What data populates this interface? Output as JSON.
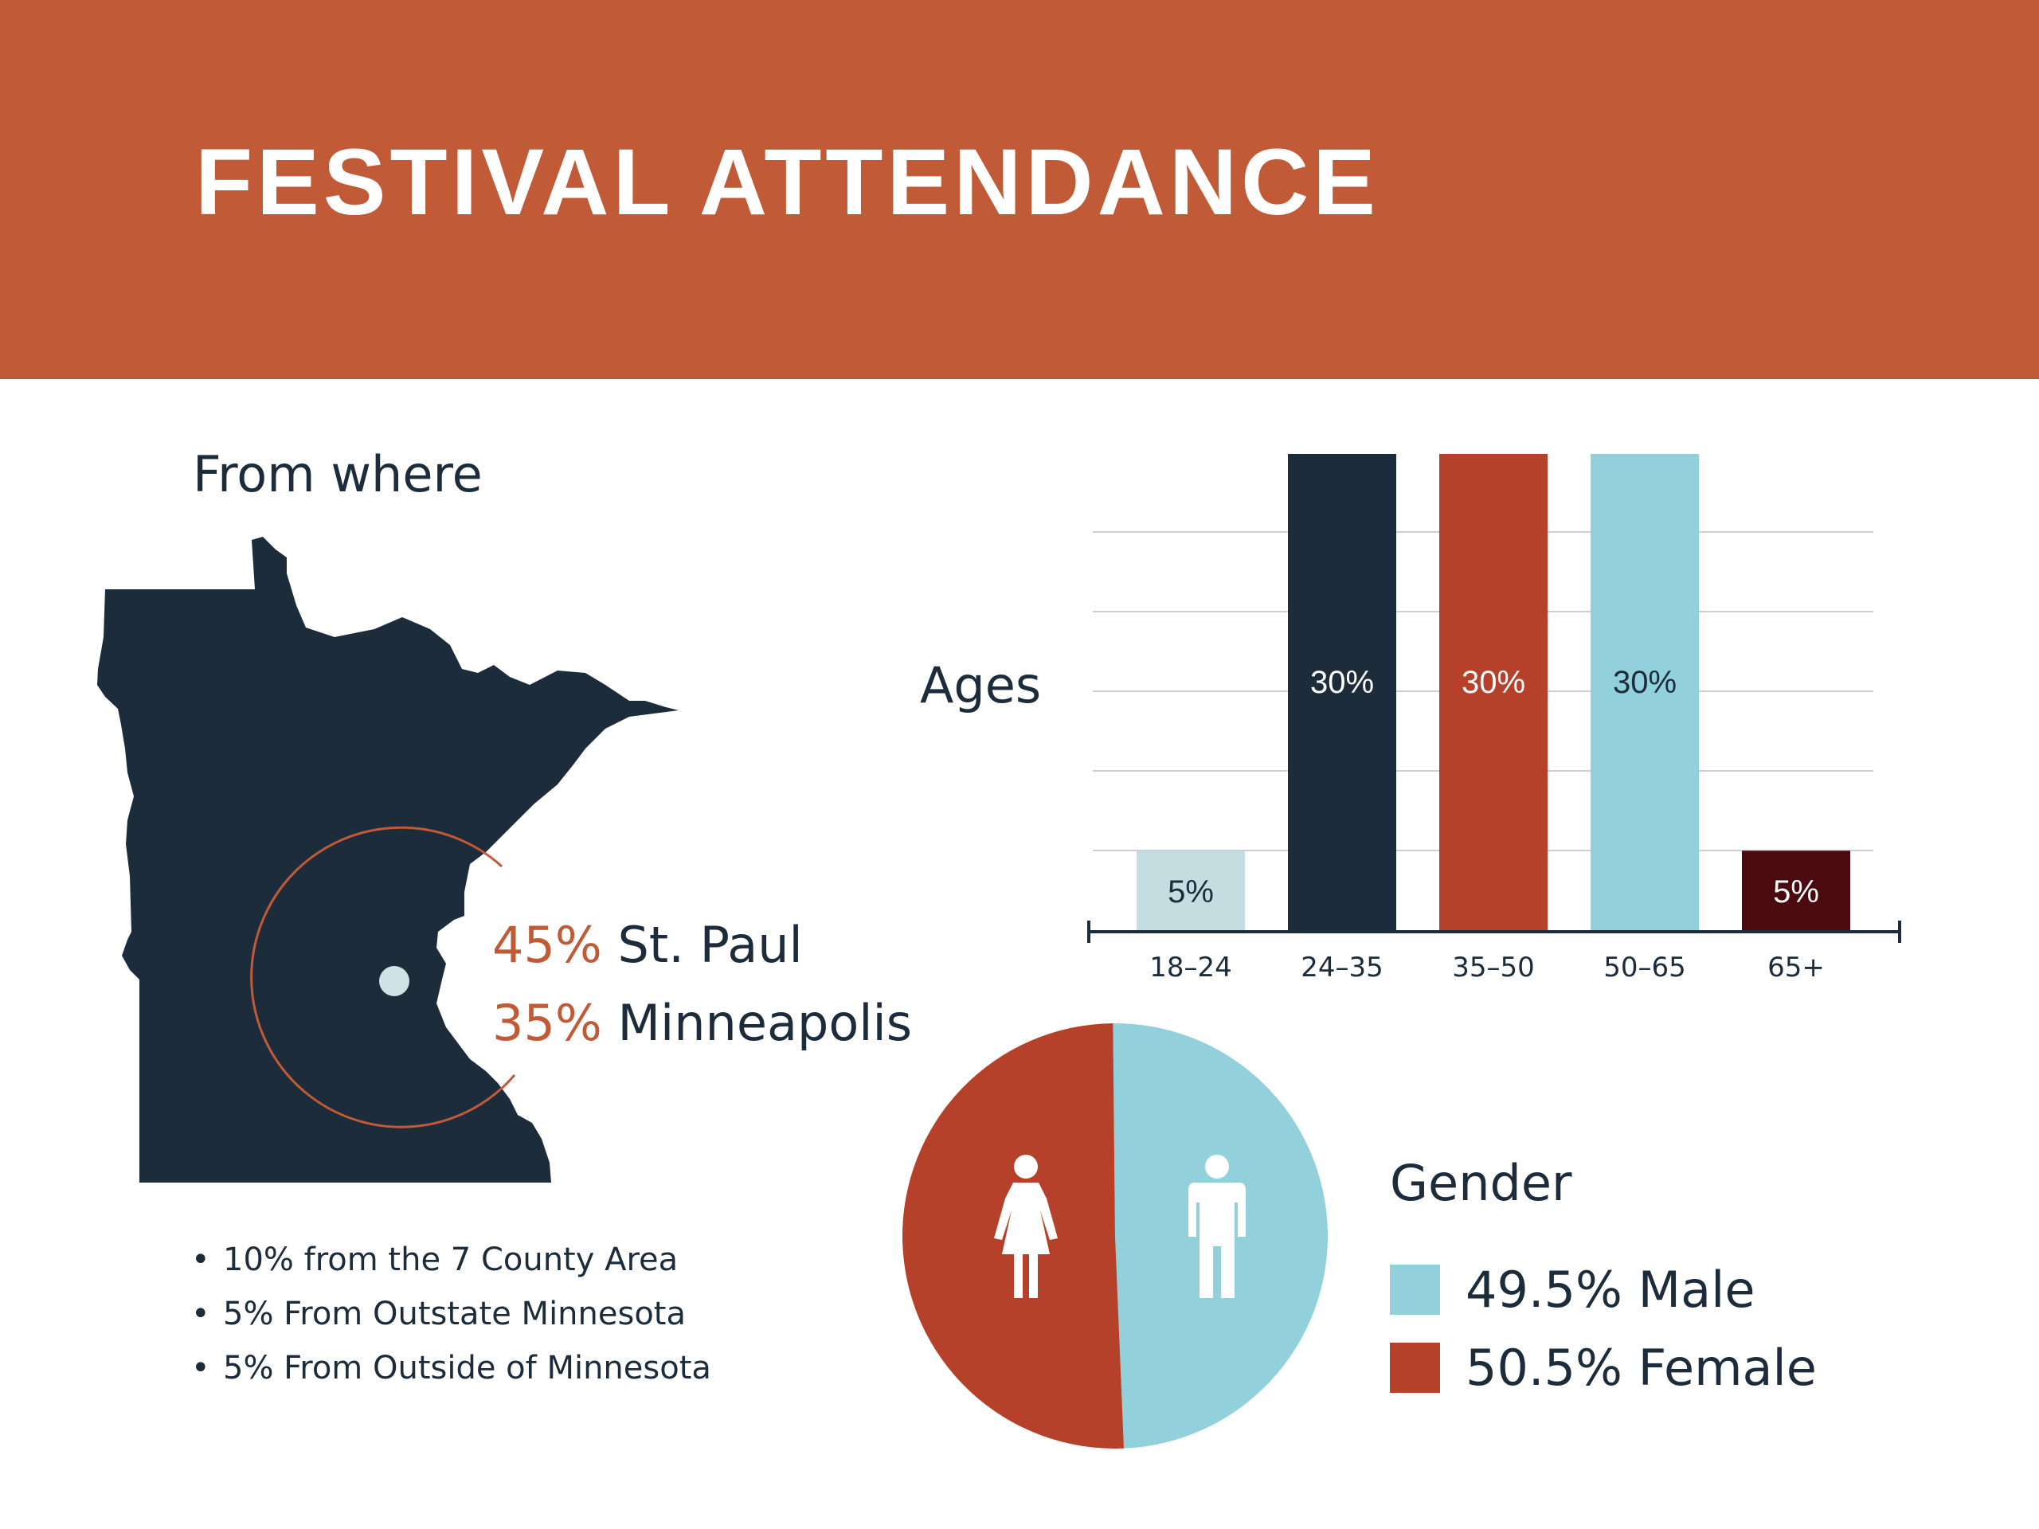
{
  "header": {
    "title": "FESTIVAL ATTENDANCE"
  },
  "colors": {
    "banner": "#c05a37",
    "navy": "#1c2c3b",
    "rust": "#b5412a",
    "sky": "#92d1dc",
    "pale_blue": "#c4dde0",
    "maroon": "#4a0a0f",
    "accent": "#c05a37"
  },
  "location": {
    "heading": "From where",
    "cities": [
      {
        "pct": "45%",
        "name": "St. Paul"
      },
      {
        "pct": "35%",
        "name": "Minneapolis"
      }
    ],
    "bullets": [
      "10% from the 7 County Area",
      "5% From Outstate Minnesota",
      "5% From Outside of Minnesota"
    ],
    "bullet_glyph": "•",
    "map_icon": "minnesota-state-shape"
  },
  "ages": {
    "heading": "Ages"
  },
  "gender": {
    "heading": "Gender",
    "legend": [
      {
        "label": "49.5% Male",
        "color": "#92d1dc"
      },
      {
        "label": "50.5% Female",
        "color": "#b5412a"
      }
    ],
    "icons": [
      "female-icon",
      "male-icon"
    ]
  },
  "chart_data": [
    {
      "type": "bar",
      "categories": [
        "18-24",
        "24-35",
        "35-50",
        "50-65",
        "65+"
      ],
      "values": [
        5,
        30,
        30,
        30,
        5
      ],
      "labels": [
        "5%",
        "30%",
        "30%",
        "30%",
        "5%"
      ],
      "colors": [
        "#c4dde0",
        "#1c2c3b",
        "#b5412a",
        "#92d1dc",
        "#4a0a0f"
      ],
      "label_colors": [
        "#1c2c3b",
        "#ffffff",
        "#ffffff",
        "#1c2c3b",
        "#ffffff"
      ],
      "title": "Ages",
      "ylim": [
        0,
        30
      ],
      "grid": true
    },
    {
      "type": "pie",
      "categories": [
        "Male",
        "Female"
      ],
      "values": [
        49.5,
        50.5
      ],
      "colors": [
        "#92d1dc",
        "#b5412a"
      ],
      "title": "Gender"
    }
  ]
}
